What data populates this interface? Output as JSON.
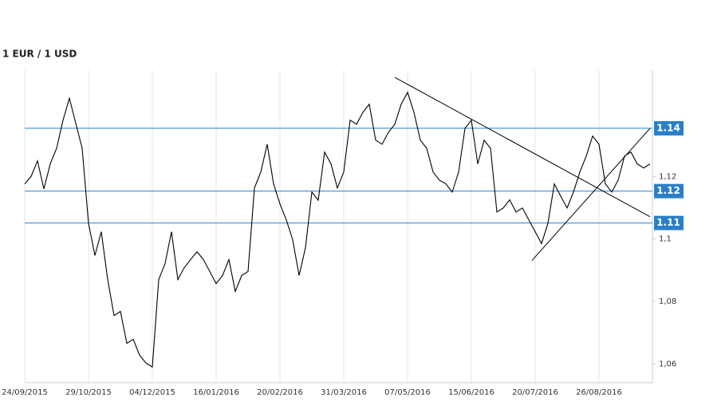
{
  "chart_data": {
    "type": "line",
    "title": "1 EUR / 1 USD",
    "categories": [
      "24/09/2015",
      null,
      null,
      null,
      null,
      null,
      null,
      null,
      null,
      null,
      "29/10/2015",
      null,
      null,
      null,
      null,
      null,
      null,
      null,
      null,
      null,
      "04/12/2015",
      null,
      null,
      null,
      null,
      null,
      null,
      null,
      null,
      null,
      "16/01/2016",
      null,
      null,
      null,
      null,
      null,
      null,
      null,
      null,
      null,
      "20/02/2016",
      null,
      null,
      null,
      null,
      null,
      null,
      null,
      null,
      null,
      "31/03/2016",
      null,
      null,
      null,
      null,
      null,
      null,
      null,
      null,
      null,
      "07/05/2016",
      null,
      null,
      null,
      null,
      null,
      null,
      null,
      null,
      null,
      "15/06/2016",
      null,
      null,
      null,
      null,
      null,
      null,
      null,
      null,
      null,
      "20/07/2016",
      null,
      null,
      null,
      null,
      null,
      null,
      null,
      null,
      null,
      "26/08/2016",
      null,
      null,
      null,
      null,
      null,
      null,
      null,
      null
    ],
    "values": [
      1.1176,
      1.12,
      1.125,
      1.116,
      1.124,
      1.129,
      1.138,
      1.145,
      1.137,
      1.129,
      1.105,
      1.0947,
      1.1023,
      1.087,
      1.0755,
      1.0768,
      1.0666,
      1.0679,
      1.0628,
      1.0603,
      1.059,
      1.087,
      1.0921,
      1.1023,
      1.087,
      1.0908,
      1.0934,
      1.0959,
      1.0934,
      1.0896,
      1.0857,
      1.0883,
      1.0934,
      1.0832,
      1.0883,
      1.0896,
      1.1163,
      1.1214,
      1.1303,
      1.1176,
      1.1112,
      1.1061,
      1.0997,
      1.0883,
      1.0972,
      1.115,
      1.1124,
      1.1278,
      1.124,
      1.1163,
      1.1214,
      1.138,
      1.1367,
      1.1405,
      1.1431,
      1.1316,
      1.1303,
      1.1341,
      1.1367,
      1.1431,
      1.1469,
      1.1405,
      1.1316,
      1.129,
      1.1214,
      1.1188,
      1.1176,
      1.115,
      1.1214,
      1.1354,
      1.138,
      1.124,
      1.1316,
      1.129,
      1.1086,
      1.1099,
      1.1125,
      1.1086,
      1.1099,
      1.1061,
      1.1023,
      1.0985,
      1.105,
      1.1176,
      1.1137,
      1.1099,
      1.115,
      1.1214,
      1.1265,
      1.1329,
      1.1303,
      1.1176,
      1.115,
      1.1188,
      1.1265,
      1.1278,
      1.124,
      1.1227,
      1.124
    ],
    "color": "#000000",
    "ylim": [
      1.054,
      1.154
    ],
    "yticks": [
      {
        "value": 1.06,
        "label": "1,06"
      },
      {
        "value": 1.08,
        "label": "1,08"
      },
      {
        "value": 1.1,
        "label": "1,1"
      },
      {
        "value": 1.12,
        "label": "1,12"
      }
    ],
    "levels": [
      {
        "value": 1.1354,
        "label": "1.14"
      },
      {
        "value": 1.1153,
        "label": "1.12"
      },
      {
        "value": 1.1051,
        "label": "1.11"
      }
    ],
    "level_color": "#2a7fc9",
    "trendlines": [
      {
        "x": [
          58,
          98
        ],
        "y": [
          1.1517,
          1.1071
        ]
      },
      {
        "x": [
          79.5,
          98
        ],
        "y": [
          1.0931,
          1.1354
        ]
      }
    ],
    "grid": true
  }
}
